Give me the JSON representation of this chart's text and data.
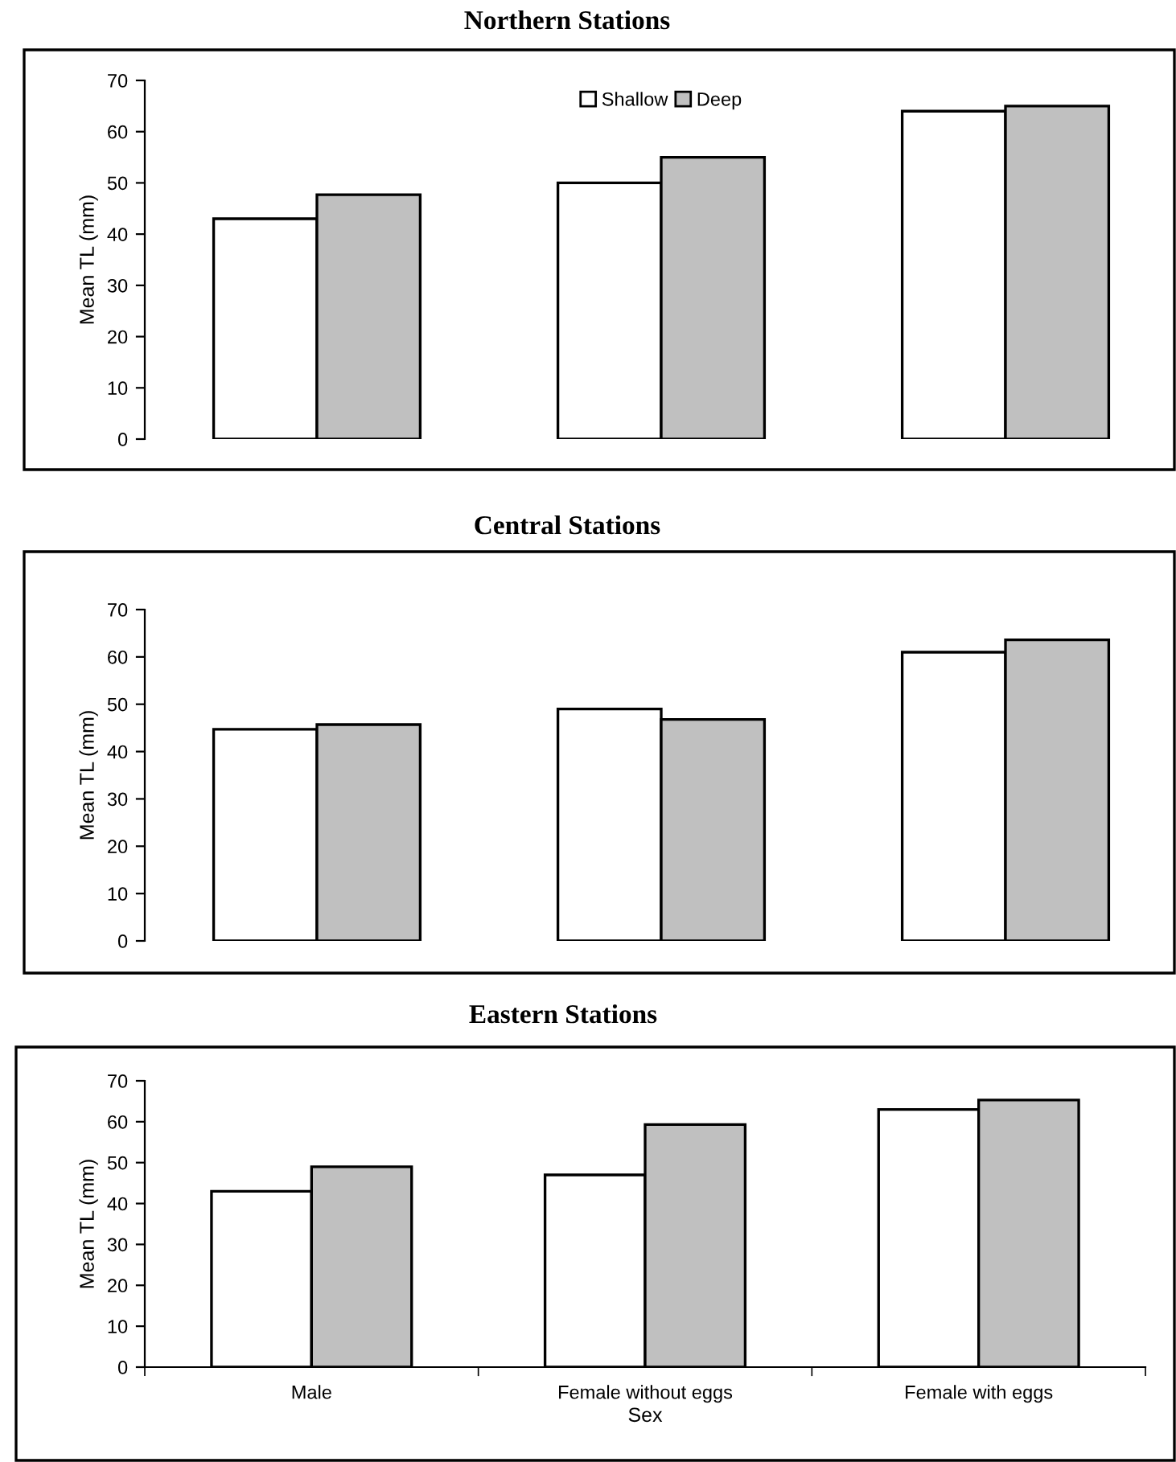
{
  "chart_data": [
    {
      "type": "bar",
      "title": "Northern Stations",
      "ylabel": "Mean TL (mm)",
      "categories": [
        null,
        null,
        null
      ],
      "tick_labels": "y",
      "legend": "top",
      "grid": false,
      "ylim": [
        0,
        70
      ],
      "yticks": [
        0,
        10,
        20,
        30,
        40,
        50,
        60,
        70
      ],
      "series": [
        {
          "name": "Shallow",
          "color": "#ffffff",
          "values": [
            43,
            50,
            64
          ]
        },
        {
          "name": "Deep",
          "color": "#c0c0c0",
          "values": [
            47.7,
            55,
            65
          ]
        }
      ]
    },
    {
      "type": "bar",
      "title": "Central Stations",
      "ylabel": "Mean TL (mm)",
      "categories": [
        null,
        null,
        null
      ],
      "tick_labels": "y",
      "grid": false,
      "ylim": [
        0,
        70
      ],
      "yticks": [
        0,
        10,
        20,
        30,
        40,
        50,
        60,
        70
      ],
      "series": [
        {
          "color": "#ffffff",
          "values": [
            44.7,
            49,
            61
          ]
        },
        {
          "color": "#c0c0c0",
          "values": [
            45.7,
            46.8,
            63.6
          ]
        }
      ]
    },
    {
      "type": "bar",
      "title": "Eastern Stations",
      "xlabel": "Sex",
      "ylabel": "Mean TL (mm)",
      "categories": [
        "Male",
        "Female without eggs",
        "Female with eggs"
      ],
      "grid": false,
      "ylim": [
        0,
        70
      ],
      "yticks": [
        0,
        10,
        20,
        30,
        40,
        50,
        60,
        70
      ],
      "series": [
        {
          "color": "#ffffff",
          "values": [
            43,
            47,
            63
          ]
        },
        {
          "color": "#c0c0c0",
          "values": [
            49,
            59.3,
            65.3
          ]
        }
      ]
    }
  ]
}
